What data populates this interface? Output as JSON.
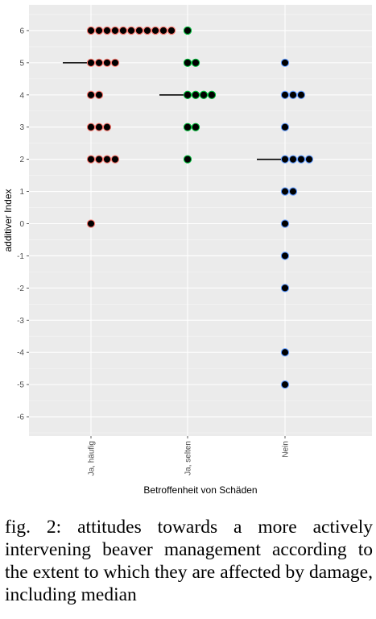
{
  "chart_data": {
    "type": "scatter",
    "subtype": "dotplot",
    "xlabel": "Betroffenheit von Schäden",
    "ylabel": "additiver Index",
    "categories": [
      "Ja, häufig",
      "Ja, selten",
      "Nein"
    ],
    "ylim": [
      -6.6,
      6.8
    ],
    "yticks": [
      -6,
      -5,
      -4,
      -3,
      -2,
      -1,
      0,
      1,
      2,
      3,
      4,
      5,
      6
    ],
    "grid": true,
    "legend": "none",
    "series": [
      {
        "category": "Ja, häufig",
        "color": "#F8766D",
        "counts": [
          {
            "y": 6,
            "n": 11
          },
          {
            "y": 5,
            "n": 4
          },
          {
            "y": 4,
            "n": 2
          },
          {
            "y": 3,
            "n": 3
          },
          {
            "y": 2,
            "n": 4
          },
          {
            "y": 0,
            "n": 1
          }
        ],
        "median": 5
      },
      {
        "category": "Ja, selten",
        "color": "#00BA38",
        "counts": [
          {
            "y": 6,
            "n": 1
          },
          {
            "y": 5,
            "n": 2
          },
          {
            "y": 4,
            "n": 4
          },
          {
            "y": 3,
            "n": 2
          },
          {
            "y": 2,
            "n": 1
          }
        ],
        "median": 4
      },
      {
        "category": "Nein",
        "color": "#619CFF",
        "counts": [
          {
            "y": 5,
            "n": 1
          },
          {
            "y": 4,
            "n": 3
          },
          {
            "y": 3,
            "n": 1
          },
          {
            "y": 2,
            "n": 4
          },
          {
            "y": 1,
            "n": 2
          },
          {
            "y": 0,
            "n": 1
          },
          {
            "y": -1,
            "n": 1
          },
          {
            "y": -2,
            "n": 1
          },
          {
            "y": -4,
            "n": 1
          },
          {
            "y": -5,
            "n": 1
          }
        ],
        "median": 2
      }
    ]
  },
  "caption": "fig. 2: attitudes towards a more actively intervening beaver management according to the extent to which they are affected by damage, including median"
}
